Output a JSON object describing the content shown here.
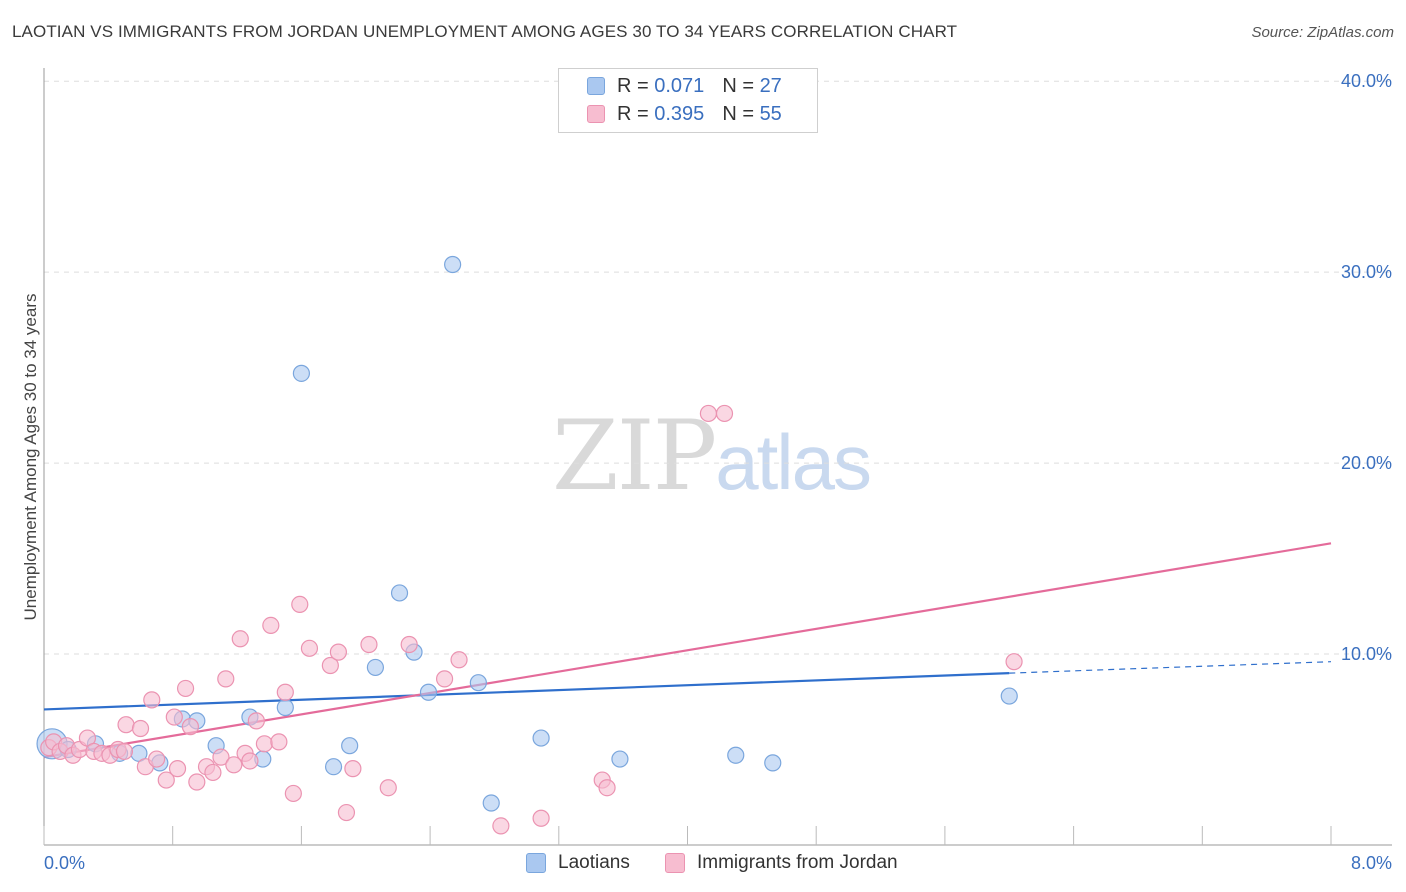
{
  "header": {
    "title": "LAOTIAN VS IMMIGRANTS FROM JORDAN UNEMPLOYMENT AMONG AGES 30 TO 34 YEARS CORRELATION CHART",
    "source": "Source: ZipAtlas.com"
  },
  "watermark": {
    "zip": "ZIP",
    "atlas": "atlas"
  },
  "legend": {
    "rows": [
      {
        "r_label": "R =",
        "r_value": "0.071",
        "n_label": "N =",
        "n_value": "27"
      },
      {
        "r_label": "R =",
        "r_value": "0.395",
        "n_label": "N =",
        "n_value": "55"
      }
    ]
  },
  "bottom_legend": {
    "series_a": "Laotians",
    "series_b": "Immigrants from Jordan"
  },
  "colors": {
    "laotian_fill": "#aac8f0",
    "laotian_stroke": "#7aa6dd",
    "laotian_line": "#2f6fcc",
    "jordan_fill": "#f7bdd0",
    "jordan_stroke": "#eb93b1",
    "jordan_line": "#e46b9a",
    "tick_text": "#3a6fbf",
    "grid": "#dddddd"
  },
  "chart_data": {
    "type": "scatter",
    "title": "LAOTIAN VS IMMIGRANTS FROM JORDAN UNEMPLOYMENT AMONG AGES 30 TO 34 YEARS CORRELATION CHART",
    "xlabel": "",
    "ylabel": "Unemployment Among Ages 30 to 34 years",
    "xlim": [
      0,
      8
    ],
    "ylim": [
      0,
      42
    ],
    "x_tick_labels": [
      "0.0%",
      "8.0%"
    ],
    "y_ticks": [
      10,
      20,
      30,
      40
    ],
    "y_tick_labels": [
      "10.0%",
      "20.0%",
      "30.0%",
      "40.0%"
    ],
    "grid": true,
    "series": [
      {
        "name": "Laotians",
        "R": 0.071,
        "N": 27,
        "points": [
          {
            "x": 0.05,
            "y": 5.3,
            "big": true
          },
          {
            "x": 0.15,
            "y": 5.0
          },
          {
            "x": 0.32,
            "y": 5.3
          },
          {
            "x": 0.47,
            "y": 4.8
          },
          {
            "x": 0.59,
            "y": 4.8
          },
          {
            "x": 0.72,
            "y": 4.3
          },
          {
            "x": 0.86,
            "y": 6.6
          },
          {
            "x": 0.95,
            "y": 6.5
          },
          {
            "x": 1.07,
            "y": 5.2
          },
          {
            "x": 1.28,
            "y": 6.7
          },
          {
            "x": 1.36,
            "y": 4.5
          },
          {
            "x": 1.5,
            "y": 7.2
          },
          {
            "x": 1.6,
            "y": 24.7
          },
          {
            "x": 1.8,
            "y": 4.1
          },
          {
            "x": 1.9,
            "y": 5.2
          },
          {
            "x": 2.06,
            "y": 9.3
          },
          {
            "x": 2.21,
            "y": 13.2
          },
          {
            "x": 2.3,
            "y": 10.1
          },
          {
            "x": 2.39,
            "y": 8.0
          },
          {
            "x": 2.54,
            "y": 30.4
          },
          {
            "x": 2.7,
            "y": 8.5
          },
          {
            "x": 2.78,
            "y": 2.2
          },
          {
            "x": 3.09,
            "y": 5.6
          },
          {
            "x": 3.58,
            "y": 4.5
          },
          {
            "x": 4.3,
            "y": 4.7
          },
          {
            "x": 4.53,
            "y": 4.3
          },
          {
            "x": 6.0,
            "y": 7.8
          }
        ],
        "trend": {
          "x0": 0.0,
          "y0": 7.1,
          "x1": 6.0,
          "y1": 9.0,
          "dash_x1": 8.0,
          "dash_y1": 9.6
        }
      },
      {
        "name": "Immigrants from Jordan",
        "R": 0.395,
        "N": 55,
        "points": [
          {
            "x": 0.03,
            "y": 5.1
          },
          {
            "x": 0.06,
            "y": 5.4
          },
          {
            "x": 0.1,
            "y": 4.9
          },
          {
            "x": 0.14,
            "y": 5.2
          },
          {
            "x": 0.18,
            "y": 4.7
          },
          {
            "x": 0.22,
            "y": 5.0
          },
          {
            "x": 0.27,
            "y": 5.6
          },
          {
            "x": 0.31,
            "y": 4.9
          },
          {
            "x": 0.36,
            "y": 4.8
          },
          {
            "x": 0.41,
            "y": 4.7
          },
          {
            "x": 0.46,
            "y": 5.0
          },
          {
            "x": 0.5,
            "y": 4.9
          },
          {
            "x": 0.51,
            "y": 6.3
          },
          {
            "x": 0.6,
            "y": 6.1
          },
          {
            "x": 0.63,
            "y": 4.1
          },
          {
            "x": 0.67,
            "y": 7.6
          },
          {
            "x": 0.7,
            "y": 4.5
          },
          {
            "x": 0.76,
            "y": 3.4
          },
          {
            "x": 0.81,
            "y": 6.7
          },
          {
            "x": 0.83,
            "y": 4.0
          },
          {
            "x": 0.88,
            "y": 8.2
          },
          {
            "x": 0.91,
            "y": 6.2
          },
          {
            "x": 0.95,
            "y": 3.3
          },
          {
            "x": 1.01,
            "y": 4.1
          },
          {
            "x": 1.05,
            "y": 3.8
          },
          {
            "x": 1.1,
            "y": 4.6
          },
          {
            "x": 1.13,
            "y": 8.7
          },
          {
            "x": 1.18,
            "y": 4.2
          },
          {
            "x": 1.22,
            "y": 10.8
          },
          {
            "x": 1.25,
            "y": 4.8
          },
          {
            "x": 1.28,
            "y": 4.4
          },
          {
            "x": 1.32,
            "y": 6.5
          },
          {
            "x": 1.37,
            "y": 5.3
          },
          {
            "x": 1.41,
            "y": 11.5
          },
          {
            "x": 1.46,
            "y": 5.4
          },
          {
            "x": 1.5,
            "y": 8.0
          },
          {
            "x": 1.55,
            "y": 2.7
          },
          {
            "x": 1.59,
            "y": 12.6
          },
          {
            "x": 1.65,
            "y": 10.3
          },
          {
            "x": 1.78,
            "y": 9.4
          },
          {
            "x": 1.83,
            "y": 10.1
          },
          {
            "x": 1.88,
            "y": 1.7
          },
          {
            "x": 1.92,
            "y": 4.0
          },
          {
            "x": 2.02,
            "y": 10.5
          },
          {
            "x": 2.14,
            "y": 3.0
          },
          {
            "x": 2.27,
            "y": 10.5
          },
          {
            "x": 2.49,
            "y": 8.7
          },
          {
            "x": 2.58,
            "y": 9.7
          },
          {
            "x": 2.84,
            "y": 1.0
          },
          {
            "x": 3.09,
            "y": 1.4
          },
          {
            "x": 3.47,
            "y": 3.4
          },
          {
            "x": 3.5,
            "y": 3.0
          },
          {
            "x": 4.13,
            "y": 22.6
          },
          {
            "x": 4.23,
            "y": 22.6
          },
          {
            "x": 6.03,
            "y": 9.6
          }
        ],
        "trend": {
          "x0": 0.0,
          "y0": 4.6,
          "x1": 8.0,
          "y1": 15.8
        }
      }
    ]
  }
}
